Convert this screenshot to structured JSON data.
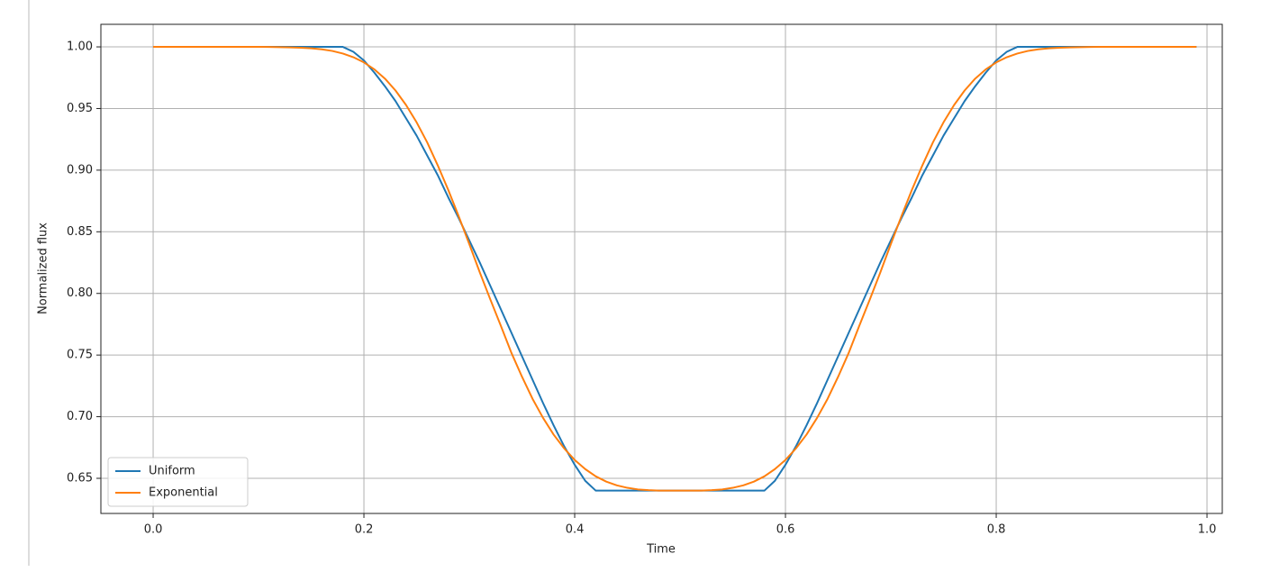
{
  "chart_data": {
    "type": "line",
    "x": [
      0,
      0.01,
      0.02,
      0.03,
      0.04,
      0.05,
      0.06,
      0.07,
      0.08,
      0.09,
      0.1,
      0.11,
      0.12,
      0.13,
      0.14,
      0.15,
      0.16,
      0.17,
      0.18,
      0.19,
      0.2,
      0.21,
      0.22,
      0.23,
      0.24,
      0.25,
      0.26,
      0.27,
      0.28,
      0.29,
      0.3,
      0.31,
      0.32,
      0.33,
      0.34,
      0.35,
      0.36,
      0.37,
      0.38,
      0.39,
      0.4,
      0.41,
      0.42,
      0.43,
      0.44,
      0.45,
      0.46,
      0.47,
      0.48,
      0.49,
      0.5,
      0.51,
      0.52,
      0.53,
      0.54,
      0.55,
      0.56,
      0.57,
      0.58,
      0.59,
      0.6,
      0.61,
      0.62,
      0.63,
      0.64,
      0.65,
      0.66,
      0.67,
      0.68,
      0.69,
      0.7,
      0.71,
      0.72,
      0.73,
      0.74,
      0.75,
      0.76,
      0.77,
      0.78,
      0.79,
      0.8,
      0.81,
      0.82,
      0.83,
      0.84,
      0.85,
      0.86,
      0.87,
      0.88,
      0.89,
      0.9,
      0.91,
      0.92,
      0.93,
      0.94,
      0.95,
      0.96,
      0.97,
      0.98,
      0.99
    ],
    "series": [
      {
        "name": "Uniform",
        "color": "#1f77b4",
        "values": [
          1,
          1,
          1,
          1,
          1,
          1,
          1,
          1,
          1,
          1,
          1,
          1,
          1,
          1,
          1,
          1,
          1,
          1,
          1,
          0.996,
          0.989,
          0.979,
          0.968,
          0.956,
          0.942,
          0.928,
          0.912,
          0.896,
          0.878,
          0.861,
          0.843,
          0.825,
          0.806,
          0.787,
          0.768,
          0.749,
          0.73,
          0.711,
          0.693,
          0.676,
          0.661,
          0.648,
          0.64,
          0.64,
          0.64,
          0.64,
          0.64,
          0.64,
          0.64,
          0.64,
          0.64,
          0.64,
          0.64,
          0.64,
          0.64,
          0.64,
          0.64,
          0.64,
          0.64,
          0.648,
          0.661,
          0.676,
          0.693,
          0.711,
          0.73,
          0.749,
          0.768,
          0.787,
          0.806,
          0.825,
          0.843,
          0.861,
          0.878,
          0.896,
          0.912,
          0.928,
          0.942,
          0.956,
          0.968,
          0.979,
          0.989,
          0.996,
          1,
          1,
          1,
          1,
          1,
          1,
          1,
          1,
          1,
          1,
          1,
          1,
          1,
          1,
          1,
          1,
          1,
          1
        ]
      },
      {
        "name": "Exponential",
        "color": "#ff7f0e",
        "values": [
          1,
          1,
          1,
          1,
          1,
          1,
          1,
          1,
          1,
          1,
          1,
          0.9999,
          0.9998,
          0.9996,
          0.9993,
          0.9988,
          0.998,
          0.9967,
          0.9946,
          0.9916,
          0.9874,
          0.9817,
          0.9742,
          0.9646,
          0.9528,
          0.9388,
          0.9226,
          0.904,
          0.884,
          0.8625,
          0.84,
          0.817,
          0.795,
          0.7736,
          0.7517,
          0.7324,
          0.7145,
          0.699,
          0.6855,
          0.6743,
          0.6649,
          0.6575,
          0.6516,
          0.6473,
          0.6443,
          0.6423,
          0.641,
          0.6404,
          0.64,
          0.64,
          0.64,
          0.64,
          0.64,
          0.6404,
          0.641,
          0.6423,
          0.6443,
          0.6473,
          0.6516,
          0.6575,
          0.6649,
          0.6743,
          0.6855,
          0.699,
          0.7145,
          0.7324,
          0.7517,
          0.7736,
          0.795,
          0.817,
          0.84,
          0.8625,
          0.884,
          0.904,
          0.9226,
          0.9388,
          0.9528,
          0.9646,
          0.9742,
          0.9817,
          0.9874,
          0.9916,
          0.9946,
          0.9967,
          0.998,
          0.9988,
          0.9993,
          0.9996,
          0.9998,
          0.9999,
          1,
          1,
          1,
          1,
          1,
          1,
          1,
          1,
          1,
          1
        ]
      }
    ],
    "xlabel": "Time",
    "ylabel": "Normalized flux",
    "xlim": [
      -0.0496,
      1.0145
    ],
    "xticks": [
      {
        "value": 0,
        "label": "0.0"
      },
      0.2,
      0.4,
      0.6,
      0.8,
      {
        "value": 1,
        "label": "1.0"
      }
    ],
    "ylim": [
      0.6215,
      1.0183
    ],
    "yticks": [
      {
        "value": 0.65,
        "label": "0.65"
      },
      {
        "value": 0.7,
        "label": "0.70"
      },
      {
        "value": 0.75,
        "label": "0.75"
      },
      {
        "value": 0.8,
        "label": "0.80"
      },
      {
        "value": 0.85,
        "label": "0.85"
      },
      {
        "value": 0.9,
        "label": "0.90"
      },
      {
        "value": 0.95,
        "label": "0.95"
      },
      {
        "value": 1,
        "label": "1.00"
      }
    ],
    "grid": true,
    "legend": "lower left"
  }
}
